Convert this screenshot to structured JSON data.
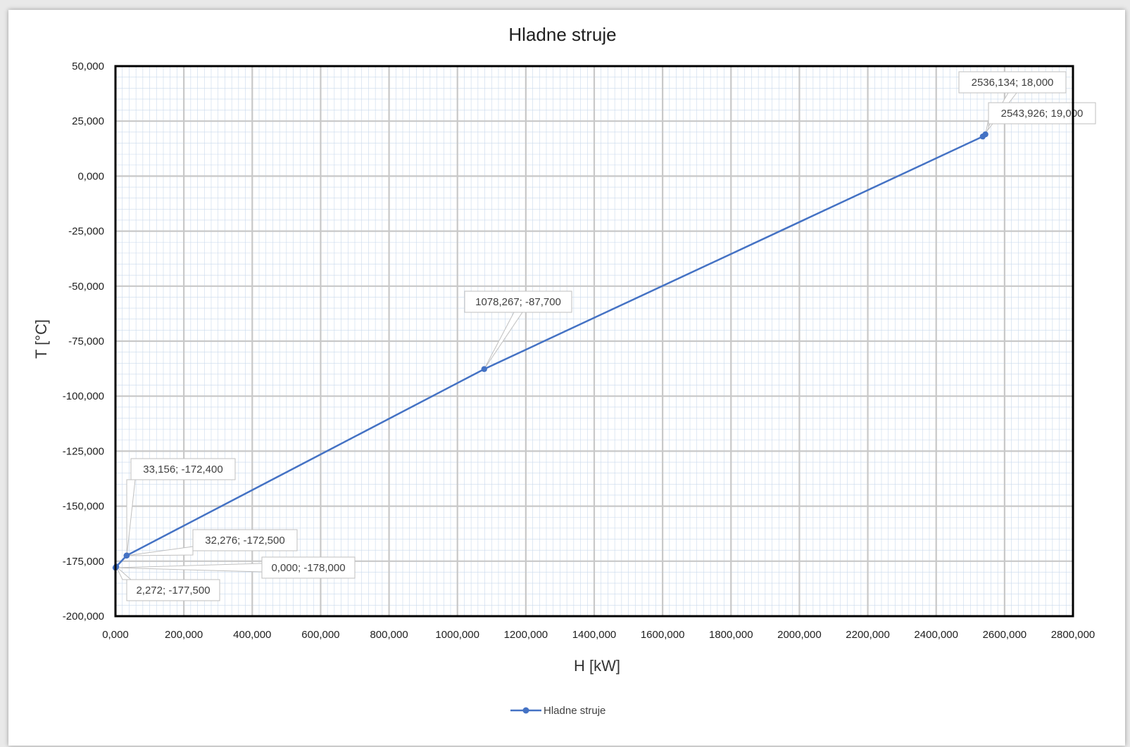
{
  "colors": {
    "series": "#4472c4",
    "grid_major": "#c8c8c8",
    "grid_minor": "#c9d9ec",
    "plot_border": "#000000",
    "label_border": "#bfbfbf",
    "leader": "#c0c0c0"
  },
  "chart_data": {
    "type": "scatter",
    "title": "Hladne struje",
    "xlabel": "H [kW]",
    "ylabel": "T [°C]",
    "xlim": [
      0,
      2800
    ],
    "ylim": [
      -200,
      50
    ],
    "x_ticks": [
      "0,000",
      "200,000",
      "400,000",
      "600,000",
      "800,000",
      "1000,000",
      "1200,000",
      "1400,000",
      "1600,000",
      "1800,000",
      "2000,000",
      "2200,000",
      "2400,000",
      "2600,000",
      "2800,000"
    ],
    "y_ticks": [
      "50,000",
      "25,000",
      "0,000",
      "-25,000",
      "-50,000",
      "-75,000",
      "-100,000",
      "-125,000",
      "-150,000",
      "-175,000",
      "-200,000"
    ],
    "grid": true,
    "minor_grid": true,
    "legend_position": "bottom",
    "series": [
      {
        "name": "Hladne struje",
        "x": [
          0.0,
          2.272,
          32.276,
          33.156,
          1078.267,
          2536.134,
          2543.926
        ],
        "y": [
          -178.0,
          -177.5,
          -172.5,
          -172.4,
          -87.7,
          18.0,
          19.0
        ],
        "labels": [
          "0,000; -178,000",
          "2,272; -177,500",
          "32,276; -172,500",
          "33,156; -172,400",
          "1078,267; -87,700",
          "2536,134; 18,000",
          "2543,926; 19,000"
        ]
      }
    ]
  }
}
